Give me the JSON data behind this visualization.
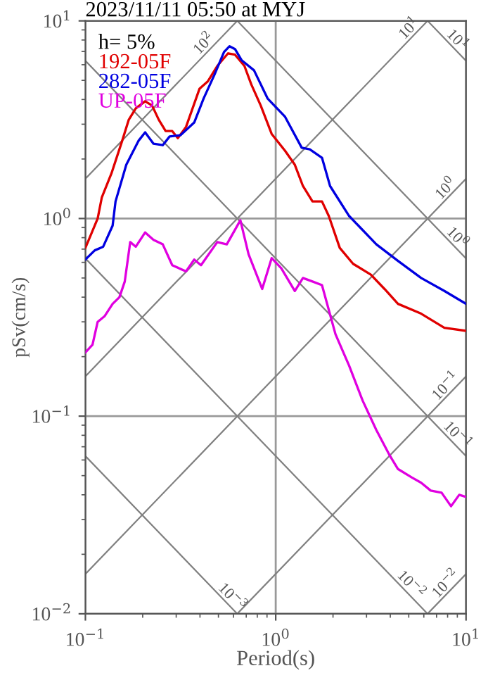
{
  "chart_data": {
    "type": "line",
    "title": "2023/11/11 05:50 at MYJ",
    "xlabel": "Period(s)",
    "ylabel": "pSv(cm/s)",
    "log": "xy",
    "grid": true,
    "legend": "top left",
    "legend_title": "h= 5%",
    "xlim": [
      0.1,
      10
    ],
    "ylim": [
      0.01,
      10
    ],
    "xticks": [
      {
        "value": 0.1,
        "label": "10$^{−1}$"
      },
      {
        "value": 1,
        "label": "10$^{0}$"
      },
      {
        "value": 10,
        "label": "10$^{1}$"
      }
    ],
    "yticks": [
      {
        "value": 0.01,
        "label": "10$^{−2}$"
      },
      {
        "value": 0.1,
        "label": "10$^{−1}$"
      },
      {
        "value": 1,
        "label": "10$^{0}$"
      },
      {
        "value": 10,
        "label": "10$^{1}$"
      }
    ],
    "series": [
      {
        "color": "#808080",
        "x": [
          0.1,
          0.628
        ],
        "values": [
          1.59,
          10
        ]
      },
      {
        "color": "#808080",
        "x": [
          0.1,
          6.28
        ],
        "values": [
          0.159,
          10
        ]
      },
      {
        "color": "#808080",
        "x": [
          0.1,
          10
        ],
        "values": [
          0.0159,
          1.59
        ]
      },
      {
        "color": "#808080",
        "x": [
          0.628,
          10
        ],
        "values": [
          0.01,
          0.159
        ]
      },
      {
        "color": "#808080",
        "x": [
          6.28,
          10
        ],
        "values": [
          0.01,
          0.0159
        ]
      },
      {
        "color": "#808080",
        "x": [
          6.28,
          10
        ],
        "values": [
          10,
          6.28
        ]
      },
      {
        "color": "#808080",
        "x": [
          0.628,
          10
        ],
        "values": [
          10,
          0.628
        ]
      },
      {
        "color": "#808080",
        "x": [
          0.1,
          10
        ],
        "values": [
          6.28,
          0.0628
        ]
      },
      {
        "color": "#808080",
        "x": [
          0.1,
          6.28
        ],
        "values": [
          0.628,
          0.01
        ]
      },
      {
        "color": "#808080",
        "x": [
          0.1,
          0.628
        ],
        "values": [
          0.0628,
          0.01
        ]
      },
      {
        "name": "192-05F",
        "color": "#e00000",
        "x": [
          0.1,
          0.116,
          0.122,
          0.137,
          0.156,
          0.169,
          0.184,
          0.206,
          0.224,
          0.243,
          0.264,
          0.286,
          0.306,
          0.338,
          0.398,
          0.439,
          0.493,
          0.562,
          0.611,
          0.685,
          0.744,
          0.834,
          0.952,
          1.12,
          1.26,
          1.39,
          1.56,
          1.75,
          1.9,
          2.17,
          2.55,
          3.16,
          3.73,
          4.39,
          5.81,
          7.69,
          10
        ],
        "values": [
          0.71,
          1.0,
          1.28,
          1.69,
          2.47,
          3.16,
          3.61,
          3.92,
          3.73,
          3.16,
          2.77,
          2.77,
          2.55,
          2.91,
          4.54,
          4.93,
          5.91,
          6.85,
          6.74,
          5.91,
          4.77,
          3.73,
          2.68,
          2.2,
          1.87,
          1.46,
          1.22,
          1.22,
          1.03,
          0.71,
          0.59,
          0.52,
          0.44,
          0.37,
          0.33,
          0.28,
          0.27
        ]
      },
      {
        "name": "282-05F",
        "color": "#0000e0",
        "x": [
          0.1,
          0.112,
          0.124,
          0.139,
          0.144,
          0.164,
          0.19,
          0.206,
          0.228,
          0.255,
          0.277,
          0.316,
          0.373,
          0.418,
          0.477,
          0.535,
          0.572,
          0.611,
          0.663,
          0.769,
          0.906,
          1.12,
          1.37,
          1.51,
          1.75,
          1.93,
          2.43,
          3.38,
          4.39,
          5.81,
          7.69,
          10
        ],
        "values": [
          0.62,
          0.69,
          0.72,
          0.92,
          1.22,
          1.87,
          2.47,
          2.73,
          2.39,
          2.35,
          2.6,
          2.64,
          3.06,
          4.05,
          5.35,
          6.96,
          7.44,
          7.2,
          6.31,
          5.62,
          4.05,
          3.27,
          2.28,
          2.24,
          2.03,
          1.46,
          1.03,
          0.74,
          0.61,
          0.5,
          0.43,
          0.37
        ]
      },
      {
        "name": "UP-05F",
        "color": "#e000e0",
        "x": [
          0.1,
          0.109,
          0.116,
          0.126,
          0.139,
          0.151,
          0.161,
          0.172,
          0.184,
          0.206,
          0.228,
          0.255,
          0.286,
          0.338,
          0.373,
          0.405,
          0.493,
          0.553,
          0.652,
          0.72,
          0.849,
          0.952,
          1.07,
          1.26,
          1.39,
          1.56,
          1.75,
          2.06,
          2.43,
          2.86,
          3.38,
          3.98,
          4.39,
          5.18,
          5.81,
          6.52,
          7.44,
          8.34,
          9.21,
          10
        ],
        "values": [
          0.21,
          0.23,
          0.3,
          0.32,
          0.37,
          0.4,
          0.48,
          0.76,
          0.72,
          0.85,
          0.78,
          0.74,
          0.58,
          0.54,
          0.62,
          0.58,
          0.76,
          0.74,
          0.98,
          0.66,
          0.44,
          0.63,
          0.56,
          0.43,
          0.5,
          0.48,
          0.46,
          0.26,
          0.18,
          0.12,
          0.085,
          0.063,
          0.054,
          0.049,
          0.046,
          0.042,
          0.041,
          0.035,
          0.04,
          0.039
        ]
      }
    ],
    "annotations": [
      {
        "text": "10$^{2}$",
        "x": 0.45,
        "y": 7.2
      },
      {
        "text": "10$^{1}$",
        "x": 5.4,
        "y": 8.6
      },
      {
        "text": "10$^{1}$",
        "x": 8.4,
        "y": 7.5
      },
      {
        "text": "10$^{0}$",
        "x": 8.4,
        "y": 1.33
      },
      {
        "text": "10$^{0}$",
        "x": 8.4,
        "y": 0.75
      },
      {
        "text": "10$^{−1}$",
        "x": 8.4,
        "y": 0.133
      },
      {
        "text": "10$^{−1}$",
        "x": 8.4,
        "y": 0.075
      },
      {
        "text": "10$^{−3}$",
        "x": 0.55,
        "y": 0.0114
      },
      {
        "text": "10$^{−2}$",
        "x": 4.8,
        "y": 0.0132
      },
      {
        "text": "10$^{−2}$",
        "x": 8.4,
        "y": 0.0133
      }
    ]
  }
}
